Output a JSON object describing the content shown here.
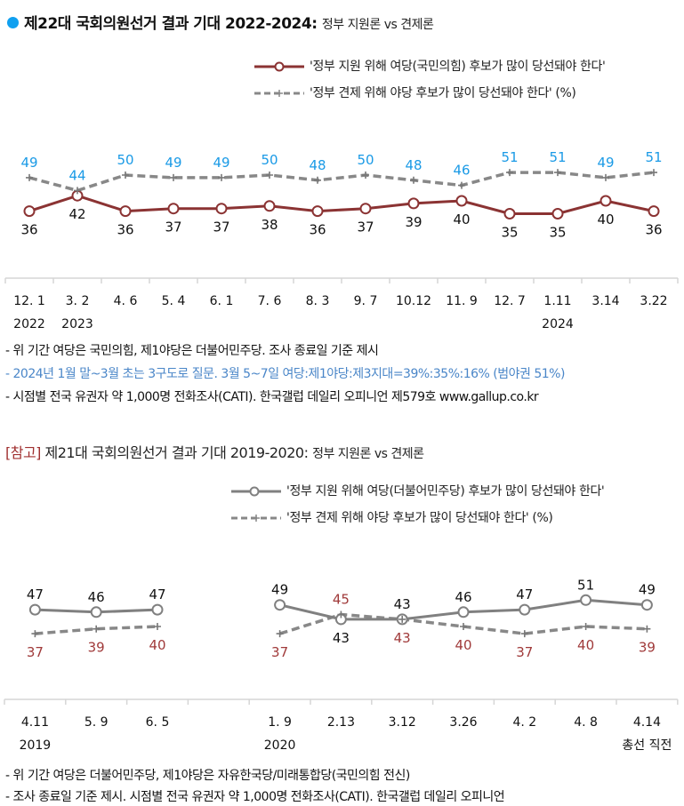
{
  "colors": {
    "bullet": "#10a0f0",
    "support_line": "#8b3333",
    "check_line": "#808080",
    "blue_label": "#1a9ae6",
    "red_label": "#a03a3a",
    "ref_tag": "#a03030",
    "note_blue": "#4a86c8"
  },
  "chart1": {
    "title_bold": "제22대 국회의원선거 결과 기대 2022-2024:",
    "title_sub": "정부 지원론 vs 견제론",
    "legend_support": "'정부 지원 위해 여당(국민의힘) 후보가 많이 당선돼야 한다'",
    "legend_check": "'정부 견제 위해 야당 후보가 많이 당선돼야 한다' (%)",
    "notes": [
      "- 위 기간 여당은 국민의힘, 제1야당은 더불어민주당. 조사 종료일 기준 제시",
      "- 2024년 1월 말~3월 초는 3구도로 질문. 3월 5~7일 여당:제1야당:제3지대=39%:35%:16% (범야권 51%)",
      "- 시점별 전국 유권자 약 1,000명 전화조사(CATI). 한국갤럽 데일리 오피니언 제579호 www.gallup.co.kr"
    ]
  },
  "chart2": {
    "ref_tag": "[참고]",
    "title_main": "제21대 국회의원선거 결과 기대 2019-2020:",
    "title_sub": "정부 지원론 vs 견제론",
    "legend_support": "'정부 지원 위해 여당(더불어민주당) 후보가 많이 당선돼야 한다'",
    "legend_check": "'정부 견제 위해 야당 후보가 많이 당선돼야 한다' (%)",
    "notes": [
      "- 위 기간 여당은 더불어민주당, 제1야당은 자유한국당/미래통합당(국민의힘 전신)",
      "- 조사 종료일 기준 제시. 시점별 전국 유권자 약 1,000명 전화조사(CATI). 한국갤럽 데일리 오피니언"
    ]
  },
  "chart_data": [
    {
      "type": "line",
      "title": "제22대 국회의원선거 결과 기대 2022-2024: 정부 지원론 vs 견제론",
      "categories": [
        "12. 1",
        "3. 2",
        "4. 6",
        "5. 4",
        "6. 1",
        "7. 6",
        "8. 3",
        "9. 7",
        "10.12",
        "11. 9",
        "12. 7",
        "1.11",
        "3.14",
        "3.22"
      ],
      "year_labels": {
        "0": "2022",
        "1": "2023",
        "11": "2024"
      },
      "ylim": [
        30,
        55
      ],
      "series": [
        {
          "name": "'정부 지원 위해 여당(국민의힘) 후보가 많이 당선돼야 한다'",
          "style": "solid-circle",
          "values": [
            36,
            42,
            36,
            37,
            37,
            38,
            36,
            37,
            39,
            40,
            35,
            35,
            40,
            36
          ]
        },
        {
          "name": "'정부 견제 위해 야당 후보가 많이 당선돼야 한다' (%)",
          "style": "dashed-plus",
          "values": [
            49,
            44,
            50,
            49,
            49,
            50,
            48,
            50,
            48,
            46,
            51,
            51,
            49,
            51
          ]
        }
      ]
    },
    {
      "type": "line",
      "title": "[참고] 제21대 국회의원선거 결과 기대 2019-2020: 정부 지원론 vs 견제론",
      "categories": [
        "4.11",
        "5. 9",
        "6. 5",
        "",
        "1. 9",
        "2.13",
        "3.12",
        "3.26",
        "4. 2",
        "4. 8",
        "4.14"
      ],
      "year_labels": {
        "0": "2019",
        "4": "2020",
        "10": "총선 직전"
      },
      "ylim": [
        30,
        55
      ],
      "segments": [
        [
          0,
          2
        ],
        [
          4,
          10
        ]
      ],
      "series": [
        {
          "name": "'정부 지원 위해 여당(더불어민주당) 후보가 많이 당선돼야 한다'",
          "style": "solid-circle",
          "values": [
            47,
            46,
            47,
            null,
            49,
            43,
            43,
            46,
            47,
            51,
            49
          ]
        },
        {
          "name": "'정부 견제 위해 야당 후보가 많이 당선돼야 한다' (%)",
          "style": "dashed-plus",
          "values": [
            37,
            39,
            40,
            null,
            37,
            45,
            43,
            40,
            37,
            40,
            39
          ]
        }
      ]
    }
  ]
}
